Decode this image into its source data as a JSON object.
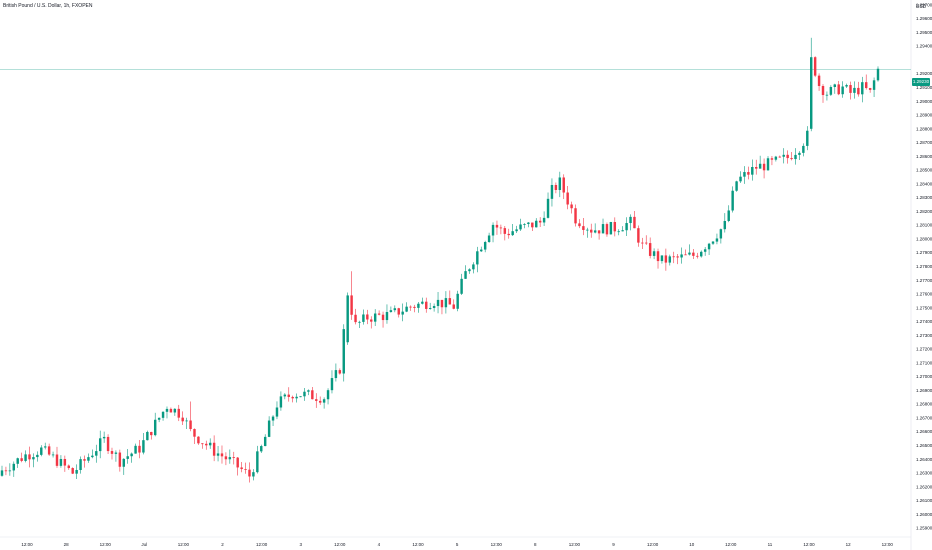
{
  "title": "British Pound / U.S. Dollar, 1h, FXOPEN",
  "currency": "USD",
  "last_price": "1.29230",
  "colors": {
    "up": "#089981",
    "down": "#f23645",
    "grid": "#f0f3fa",
    "price_line": "#089981",
    "price_label_bg": "#089981"
  },
  "chart_data": {
    "type": "candlestick",
    "title": "British Pound / U.S. Dollar, 1h, FXOPEN",
    "x_tick_labels": [
      "12:00",
      "28",
      "12:00",
      "Jul",
      "12:00",
      "2",
      "12:00",
      "3",
      "12:00",
      "4",
      "12:00",
      "5",
      "12:00",
      "8",
      "12:00",
      "9",
      "12:00",
      "10",
      "12:00",
      "11",
      "12:00",
      "12",
      "12:00"
    ],
    "y_tick_labels": [
      "1.29700",
      "1.29600",
      "1.29500",
      "1.29400",
      "1.29200",
      "1.29100",
      "1.29000",
      "1.28900",
      "1.28800",
      "1.28700",
      "1.28600",
      "1.28500",
      "1.28400",
      "1.28300",
      "1.28200",
      "1.28100",
      "1.28000",
      "1.27900",
      "1.27800",
      "1.27700",
      "1.27600",
      "1.27500",
      "1.27400",
      "1.27300",
      "1.27200",
      "1.27100",
      "1.27000",
      "1.26900",
      "1.26800",
      "1.26700",
      "1.26600",
      "1.26500",
      "1.26400",
      "1.26300",
      "1.26200",
      "1.26100",
      "1.26000",
      "1.25900"
    ],
    "ylim": [
      1.2585,
      1.2975
    ],
    "last_price": 1.2923,
    "grid": false,
    "close_anchors": [
      [
        0,
        1.2632
      ],
      [
        6,
        1.2643
      ],
      [
        10,
        1.2647
      ],
      [
        14,
        1.2639
      ],
      [
        18,
        1.263
      ],
      [
        26,
        1.2654
      ],
      [
        30,
        1.2639
      ],
      [
        35,
        1.2648
      ],
      [
        42,
        1.2679
      ],
      [
        46,
        1.2672
      ],
      [
        48,
        1.266
      ],
      [
        54,
        1.2646
      ],
      [
        58,
        1.2639
      ],
      [
        63,
        1.2628
      ],
      [
        66,
        1.2648
      ],
      [
        70,
        1.268
      ],
      [
        74,
        1.2688
      ],
      [
        82,
        1.2685
      ],
      [
        86,
        1.2706
      ],
      [
        88,
        1.2759
      ],
      [
        90,
        1.2737
      ],
      [
        93,
        1.2743
      ],
      [
        99,
        1.2745
      ],
      [
        104,
        1.2751
      ],
      [
        110,
        1.2755
      ],
      [
        115,
        1.2751
      ],
      [
        118,
        1.2775
      ],
      [
        122,
        1.2796
      ],
      [
        125,
        1.2811
      ],
      [
        128,
        1.2804
      ],
      [
        132,
        1.2808
      ],
      [
        137,
        1.2812
      ],
      [
        140,
        1.2835
      ],
      [
        142,
        1.2841
      ],
      [
        146,
        1.2815
      ],
      [
        150,
        1.2807
      ],
      [
        156,
        1.2808
      ],
      [
        160,
        1.2812
      ],
      [
        163,
        1.2795
      ],
      [
        168,
        1.2784
      ],
      [
        172,
        1.2786
      ],
      [
        176,
        1.2788
      ],
      [
        180,
        1.2798
      ],
      [
        184,
        1.281
      ],
      [
        187,
        1.2842
      ],
      [
        192,
        1.2852
      ],
      [
        196,
        1.2855
      ],
      [
        200,
        1.2859
      ],
      [
        203,
        1.2867
      ],
      [
        205,
        1.2875
      ],
      [
        206,
        1.2932
      ],
      [
        208,
        1.2912
      ],
      [
        210,
        1.2906
      ],
      [
        214,
        1.291
      ],
      [
        216,
        1.2906
      ],
      [
        219,
        1.291
      ],
      [
        221,
        1.2906
      ],
      [
        223,
        1.2923
      ]
    ]
  }
}
